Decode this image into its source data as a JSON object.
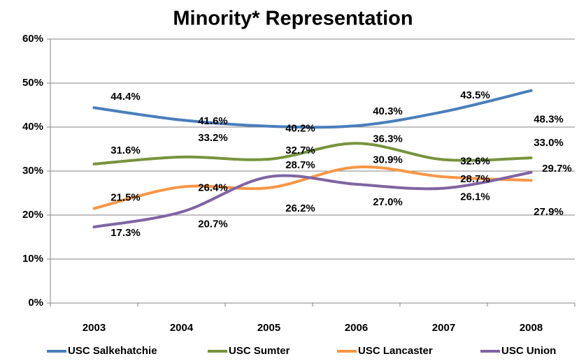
{
  "chart_data": {
    "type": "line",
    "title": "Minority* Representation",
    "categories": [
      "2003",
      "2004",
      "2005",
      "2006",
      "2007",
      "2008"
    ],
    "series": [
      {
        "name": "USC Salkehatchie",
        "color": "#4a7ebb",
        "values": [
          44.4,
          41.6,
          40.2,
          40.3,
          43.5,
          48.3
        ],
        "value_labels": [
          "44.4%",
          "41.6%",
          "40.2%",
          "40.3%",
          "43.5%",
          "48.3%"
        ]
      },
      {
        "name": "USC Sumter",
        "color": "#77933c",
        "values": [
          31.6,
          33.2,
          32.7,
          36.3,
          32.6,
          33.0
        ],
        "value_labels": [
          "31.6%",
          "33.2%",
          "32.7%",
          "36.3%",
          "32.6%",
          "33.0%"
        ]
      },
      {
        "name": "USC Lancaster",
        "color": "#f79646",
        "values": [
          21.5,
          26.4,
          26.2,
          30.9,
          28.7,
          27.9
        ],
        "value_labels": [
          "21.5%",
          "26.4%",
          "26.2%",
          "30.9%",
          "28.7%",
          "27.9%"
        ]
      },
      {
        "name": "USC Union",
        "color": "#8064a2",
        "values": [
          17.3,
          20.7,
          28.7,
          27.0,
          26.1,
          29.7
        ],
        "value_labels": [
          "17.3%",
          "20.7%",
          "28.7%",
          "27.0%",
          "26.1%",
          "29.7%"
        ]
      }
    ],
    "ylim": [
      0,
      60
    ],
    "yticks": [
      {
        "value": 0,
        "label": "0%"
      },
      {
        "value": 10,
        "label": "10%"
      },
      {
        "value": 20,
        "label": "20%"
      },
      {
        "value": 30,
        "label": "30%"
      },
      {
        "value": 40,
        "label": "40%"
      },
      {
        "value": 50,
        "label": "50%"
      },
      {
        "value": 60,
        "label": "60%"
      }
    ],
    "grid": true,
    "legend": "bottom"
  }
}
